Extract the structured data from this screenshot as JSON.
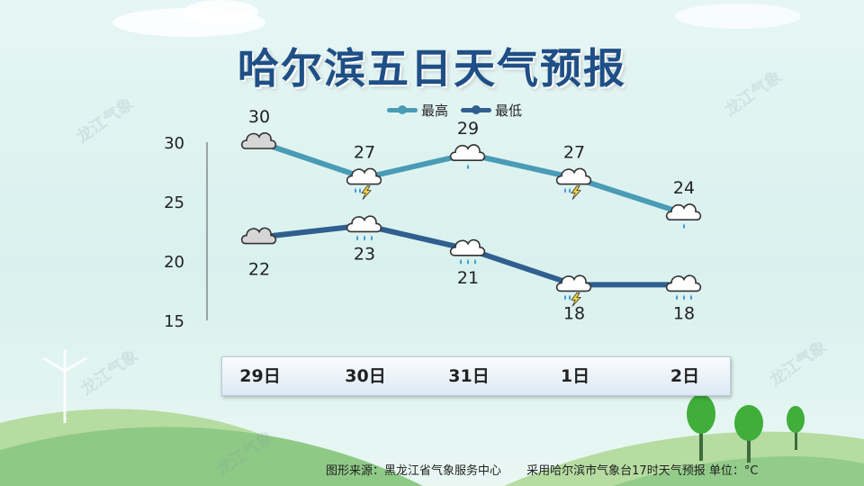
{
  "title": "哈尔滨五日天气预报",
  "watermark": "龙江气象",
  "footer": {
    "source": "图形来源：黑龙江省气象服务中心",
    "note": "采用哈尔滨市气象台17时天气预报 单位：°C"
  },
  "chart_data": {
    "type": "line",
    "categories": [
      "29日",
      "30日",
      "31日",
      "1日",
      "2日"
    ],
    "series": [
      {
        "name": "最高",
        "values": [
          30,
          27,
          29,
          27,
          24
        ],
        "color": "#4a9bb5",
        "weather_icons": [
          "cloudy",
          "thunderstorm",
          "light-rain",
          "thunderstorm",
          "light-rain"
        ]
      },
      {
        "name": "最低",
        "values": [
          22,
          23,
          21,
          18,
          18
        ],
        "color": "#2f5f8e",
        "weather_icons": [
          "cloudy",
          "rain",
          "rain",
          "thunderstorm",
          "rain"
        ]
      }
    ],
    "yticks": [
      15,
      20,
      25,
      30
    ],
    "ylim": [
      15,
      30
    ],
    "legend": "top-center",
    "grid": false
  }
}
